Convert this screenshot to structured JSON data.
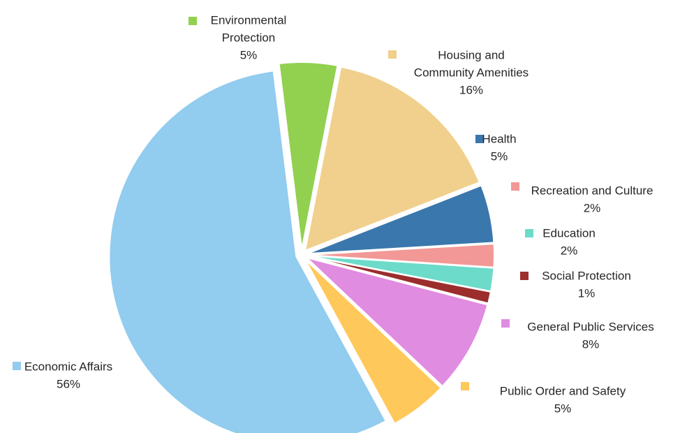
{
  "chart_data": {
    "type": "pie",
    "title": "",
    "slices": [
      {
        "label": "Environmental Protection",
        "label_lines": [
          "Environmental",
          "Protection"
        ],
        "value": 5,
        "value_label": "5%",
        "color": "#92d050"
      },
      {
        "label": "Housing and Community Amenities",
        "label_lines": [
          "Housing and",
          "Community Amenities"
        ],
        "value": 16,
        "value_label": "16%",
        "color": "#f0d08c"
      },
      {
        "label": "Health",
        "label_lines": [
          "Health"
        ],
        "value": 5,
        "value_label": "5%",
        "color": "#3a77ad"
      },
      {
        "label": "Recreation and Culture",
        "label_lines": [
          "Recreation and Culture"
        ],
        "value": 2,
        "value_label": "2%",
        "color": "#f29896"
      },
      {
        "label": "Education",
        "label_lines": [
          "Education"
        ],
        "value": 2,
        "value_label": "2%",
        "color": "#6cdbc9"
      },
      {
        "label": "Social Protection",
        "label_lines": [
          "Social Protection"
        ],
        "value": 1,
        "value_label": "1%",
        "color": "#9b2d2d"
      },
      {
        "label": "General Public Services",
        "label_lines": [
          "General Public Services"
        ],
        "value": 8,
        "value_label": "8%",
        "color": "#e08ce0"
      },
      {
        "label": "Public Order and Safety",
        "label_lines": [
          "Public Order and Safety"
        ],
        "value": 5,
        "value_label": "5%",
        "color": "#ffc85a"
      },
      {
        "label": "Economic Affairs",
        "label_lines": [
          "Economic Affairs"
        ],
        "value": 56,
        "value_label": "56%",
        "color": "#92ccef"
      }
    ],
    "legend": "none",
    "data_labels": "outside with color key"
  }
}
